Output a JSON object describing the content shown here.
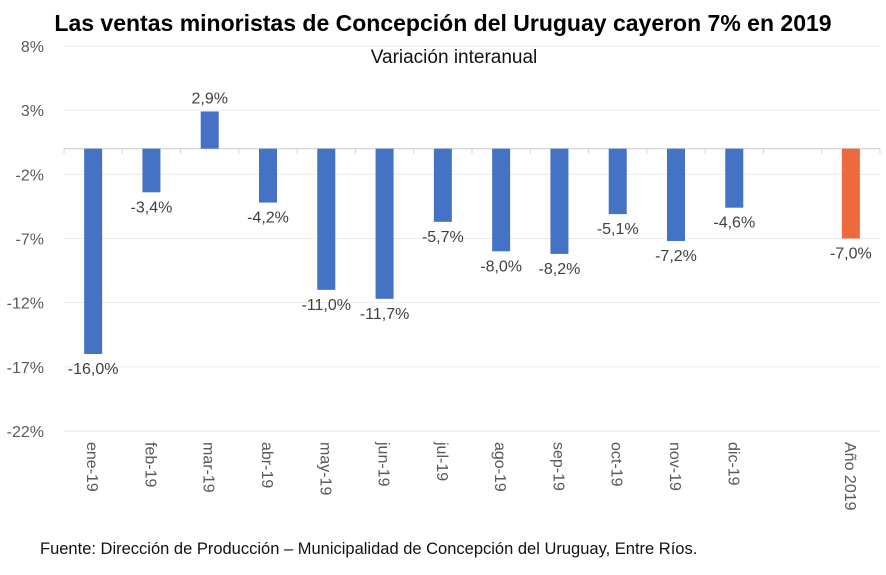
{
  "chart_data": {
    "type": "bar",
    "title": "Las ventas minoristas de Concepción del Uruguay cayeron 7% en 2019",
    "subtitle": "Variación interanual",
    "xlabel": "",
    "ylabel": "",
    "categories": [
      "ene-19",
      "feb-19",
      "mar-19",
      "abr-19",
      "may-19",
      "jun-19",
      "jul-19",
      "ago-19",
      "sep-19",
      "oct-19",
      "nov-19",
      "dic-19",
      "",
      "Año 2019"
    ],
    "values": [
      -16.0,
      -3.4,
      2.9,
      -4.2,
      -11.0,
      -11.7,
      -5.7,
      -8.0,
      -8.2,
      -5.1,
      -7.2,
      -4.6,
      null,
      -7.0
    ],
    "data_labels": [
      "-16,0%",
      "-3,4%",
      "2,9%",
      "-4,2%",
      "-11,0%",
      "-11,7%",
      "-5,7%",
      "-8,0%",
      "-8,2%",
      "-5,1%",
      "-7,2%",
      "-4,6%",
      "",
      "-7,0%"
    ],
    "bar_colors": [
      "#4472C4",
      "#4472C4",
      "#4472C4",
      "#4472C4",
      "#4472C4",
      "#4472C4",
      "#4472C4",
      "#4472C4",
      "#4472C4",
      "#4472C4",
      "#4472C4",
      "#4472C4",
      "",
      "#ED6A3E"
    ],
    "ylim": [
      -22,
      8
    ],
    "yticks": [
      8,
      3,
      -2,
      -7,
      -12,
      -17,
      -22
    ],
    "ytick_labels": [
      "8%",
      "3%",
      "-2%",
      "-7%",
      "-12%",
      "-17%",
      "-22%"
    ],
    "grid": true,
    "legend": "none"
  },
  "source": "Fuente: Dirección de Producción – Municipalidad de Concepción del Uruguay, Entre Ríos."
}
